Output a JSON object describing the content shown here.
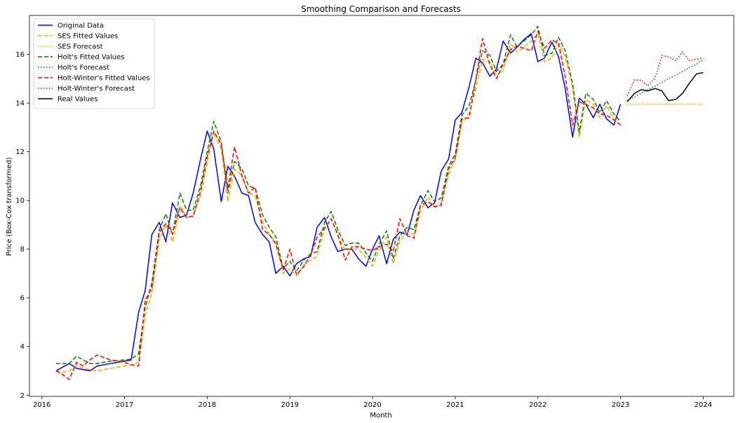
{
  "chart_data": {
    "type": "line",
    "title": "Smoothing Comparison and Forecasts",
    "xlabel": "Month",
    "ylabel": "Price (Box-Cox transformed)",
    "xlim": [
      2015.85,
      2024.37
    ],
    "ylim": [
      1.95,
      17.6
    ],
    "x_ticks": [
      2016,
      2017,
      2018,
      2019,
      2020,
      2021,
      2022,
      2023,
      2024
    ],
    "y_ticks": [
      2,
      4,
      6,
      8,
      10,
      12,
      14,
      16
    ],
    "legend_position": "upper-left",
    "grid": false,
    "series": [
      {
        "name": "Original Data",
        "color": "#0000ff",
        "style": "solid",
        "x": [
          2016.17,
          2016.25,
          2016.33,
          2016.42,
          2016.5,
          2016.58,
          2016.67,
          2016.75,
          2016.83,
          2016.92,
          2017.0,
          2017.08,
          2017.17,
          2017.25,
          2017.33,
          2017.42,
          2017.5,
          2017.58,
          2017.67,
          2017.75,
          2017.83,
          2017.92,
          2018.0,
          2018.08,
          2018.17,
          2018.25,
          2018.33,
          2018.42,
          2018.5,
          2018.58,
          2018.67,
          2018.75,
          2018.83,
          2018.92,
          2019.0,
          2019.08,
          2019.17,
          2019.25,
          2019.33,
          2019.42,
          2019.5,
          2019.58,
          2019.67,
          2019.75,
          2019.83,
          2019.92,
          2020.0,
          2020.08,
          2020.17,
          2020.25,
          2020.33,
          2020.42,
          2020.5,
          2020.58,
          2020.67,
          2020.75,
          2020.83,
          2020.92,
          2021.0,
          2021.08,
          2021.17,
          2021.25,
          2021.33,
          2021.42,
          2021.5,
          2021.58,
          2021.67,
          2021.75,
          2021.83,
          2021.92,
          2022.0,
          2022.08,
          2022.17,
          2022.25,
          2022.33,
          2022.42,
          2022.5,
          2022.58,
          2022.67,
          2022.75,
          2022.83,
          2022.92,
          2023.0
        ],
        "y": [
          3.0,
          3.15,
          3.3,
          3.1,
          3.05,
          3.0,
          3.2,
          3.25,
          3.3,
          3.35,
          3.4,
          3.45,
          5.4,
          6.3,
          8.6,
          9.1,
          8.3,
          9.9,
          9.3,
          9.4,
          10.3,
          11.7,
          12.85,
          12.1,
          9.95,
          11.4,
          11.0,
          10.3,
          10.2,
          9.1,
          8.6,
          8.3,
          7.0,
          7.3,
          6.9,
          7.4,
          7.6,
          7.7,
          8.9,
          9.3,
          8.5,
          7.9,
          8.0,
          8.0,
          7.6,
          7.3,
          8.0,
          8.55,
          7.4,
          8.4,
          8.7,
          8.6,
          9.6,
          10.2,
          9.7,
          9.9,
          11.2,
          11.7,
          13.3,
          13.6,
          14.7,
          15.85,
          15.65,
          15.1,
          15.4,
          16.55,
          16.05,
          16.3,
          16.6,
          16.85,
          15.7,
          15.85,
          16.5,
          15.9,
          14.6,
          12.6,
          14.2,
          13.95,
          13.4,
          13.95,
          13.35,
          13.1,
          13.95
        ]
      },
      {
        "name": "SES Fitted Values",
        "color": "#ffa500",
        "style": "dashed",
        "x": [
          2016.17,
          2016.25,
          2016.33,
          2016.42,
          2016.5,
          2016.58,
          2016.67,
          2016.75,
          2016.83,
          2016.92,
          2017.0,
          2017.08,
          2017.17,
          2017.25,
          2017.33,
          2017.42,
          2017.5,
          2017.58,
          2017.67,
          2017.75,
          2017.83,
          2017.92,
          2018.0,
          2018.08,
          2018.17,
          2018.25,
          2018.33,
          2018.42,
          2018.5,
          2018.58,
          2018.67,
          2018.75,
          2018.83,
          2018.92,
          2019.0,
          2019.08,
          2019.17,
          2019.25,
          2019.33,
          2019.42,
          2019.5,
          2019.58,
          2019.67,
          2019.75,
          2019.83,
          2019.92,
          2020.0,
          2020.08,
          2020.17,
          2020.25,
          2020.33,
          2020.42,
          2020.5,
          2020.58,
          2020.67,
          2020.75,
          2020.83,
          2020.92,
          2021.0,
          2021.08,
          2021.17,
          2021.25,
          2021.33,
          2021.42,
          2021.5,
          2021.58,
          2021.67,
          2021.75,
          2021.83,
          2021.92,
          2022.0,
          2022.08,
          2022.17,
          2022.25,
          2022.33,
          2022.42,
          2022.5,
          2022.58,
          2022.67,
          2022.75,
          2022.83,
          2022.92,
          2023.0
        ],
        "y": [
          3.0,
          2.95,
          3.0,
          3.2,
          3.1,
          3.05,
          3.0,
          3.05,
          3.1,
          3.15,
          3.2,
          3.25,
          3.35,
          5.3,
          6.2,
          8.4,
          9.0,
          8.3,
          9.8,
          9.3,
          9.4,
          10.2,
          11.6,
          12.8,
          12.1,
          9.95,
          11.3,
          11.0,
          10.3,
          10.2,
          9.1,
          8.6,
          8.3,
          7.0,
          7.2,
          6.9,
          7.35,
          7.55,
          7.7,
          8.85,
          9.25,
          8.55,
          7.95,
          8.0,
          8.0,
          7.65,
          7.3,
          7.95,
          8.5,
          7.4,
          8.35,
          8.7,
          8.6,
          9.55,
          10.15,
          9.7,
          9.9,
          11.1,
          11.7,
          13.2,
          13.6,
          14.6,
          15.8,
          15.7,
          15.1,
          15.35,
          16.45,
          16.1,
          16.3,
          16.55,
          16.85,
          15.7,
          15.85,
          16.45,
          15.9,
          14.6,
          12.6,
          14.15,
          13.95,
          13.4,
          13.9,
          13.35,
          13.1
        ]
      },
      {
        "name": "SES Forecast",
        "color": "#ffa500",
        "style": "dotted",
        "x": [
          2023.08,
          2023.17,
          2023.25,
          2023.33,
          2023.42,
          2023.5,
          2023.58,
          2023.67,
          2023.75,
          2023.83,
          2023.92,
          2024.0
        ],
        "y": [
          13.95,
          13.95,
          13.95,
          13.95,
          13.95,
          13.95,
          13.95,
          13.95,
          13.95,
          13.95,
          13.95,
          13.95
        ]
      },
      {
        "name": "Holt's Fitted Values",
        "color": "#008000",
        "style": "dashed",
        "x": [
          2016.17,
          2016.25,
          2016.33,
          2016.42,
          2016.5,
          2016.58,
          2016.67,
          2016.75,
          2016.83,
          2016.92,
          2017.0,
          2017.08,
          2017.17,
          2017.25,
          2017.33,
          2017.42,
          2017.5,
          2017.58,
          2017.67,
          2017.75,
          2017.83,
          2017.92,
          2018.0,
          2018.08,
          2018.17,
          2018.25,
          2018.33,
          2018.42,
          2018.5,
          2018.58,
          2018.67,
          2018.75,
          2018.83,
          2018.92,
          2019.0,
          2019.08,
          2019.17,
          2019.25,
          2019.33,
          2019.42,
          2019.5,
          2019.58,
          2019.67,
          2019.75,
          2019.83,
          2019.92,
          2020.0,
          2020.08,
          2020.17,
          2020.25,
          2020.33,
          2020.42,
          2020.5,
          2020.58,
          2020.67,
          2020.75,
          2020.83,
          2020.92,
          2021.0,
          2021.08,
          2021.17,
          2021.25,
          2021.33,
          2021.42,
          2021.5,
          2021.58,
          2021.67,
          2021.75,
          2021.83,
          2021.92,
          2022.0,
          2022.08,
          2022.17,
          2022.25,
          2022.33,
          2022.42,
          2022.5,
          2022.58,
          2022.67,
          2022.75,
          2022.83,
          2022.92,
          2023.0
        ],
        "y": [
          3.3,
          3.3,
          3.3,
          3.6,
          3.45,
          3.3,
          3.3,
          3.35,
          3.4,
          3.42,
          3.45,
          3.48,
          3.7,
          5.6,
          6.6,
          8.8,
          9.45,
          8.6,
          10.3,
          9.6,
          9.6,
          10.6,
          12.0,
          13.25,
          12.4,
          10.3,
          11.6,
          11.3,
          10.6,
          10.5,
          9.4,
          8.9,
          8.5,
          7.2,
          7.5,
          7.1,
          7.55,
          7.8,
          7.9,
          9.1,
          9.55,
          8.8,
          8.15,
          8.25,
          8.25,
          7.85,
          7.5,
          8.2,
          8.75,
          7.6,
          8.55,
          8.9,
          8.8,
          9.8,
          10.4,
          9.95,
          10.1,
          11.4,
          11.9,
          13.5,
          13.9,
          14.95,
          16.15,
          15.95,
          15.3,
          15.6,
          16.8,
          16.3,
          16.55,
          16.8,
          17.15,
          15.95,
          16.05,
          16.7,
          16.15,
          14.8,
          12.8,
          14.4,
          14.15,
          13.6,
          14.1,
          13.55,
          13.25
        ]
      },
      {
        "name": "Holt's Forecast",
        "color": "#008000",
        "style": "dotted",
        "x": [
          2023.08,
          2023.17,
          2023.25,
          2023.33,
          2023.42,
          2023.5,
          2023.58,
          2023.67,
          2023.75,
          2023.83,
          2023.92,
          2024.0
        ],
        "y": [
          14.1,
          14.25,
          14.4,
          14.55,
          14.7,
          14.85,
          15.0,
          15.15,
          15.3,
          15.45,
          15.6,
          15.8
        ]
      },
      {
        "name": "Holt-Winter's Fitted Values",
        "color": "#ff0000",
        "style": "dashed",
        "x": [
          2016.17,
          2016.25,
          2016.33,
          2016.42,
          2016.5,
          2016.58,
          2016.67,
          2016.75,
          2016.83,
          2016.92,
          2017.0,
          2017.08,
          2017.17,
          2017.25,
          2017.33,
          2017.42,
          2017.5,
          2017.58,
          2017.67,
          2017.75,
          2017.83,
          2017.92,
          2018.0,
          2018.08,
          2018.17,
          2018.25,
          2018.33,
          2018.42,
          2018.5,
          2018.58,
          2018.67,
          2018.75,
          2018.83,
          2018.92,
          2019.0,
          2019.08,
          2019.17,
          2019.25,
          2019.33,
          2019.42,
          2019.5,
          2019.58,
          2019.67,
          2019.75,
          2019.83,
          2019.92,
          2020.0,
          2020.08,
          2020.17,
          2020.25,
          2020.33,
          2020.42,
          2020.5,
          2020.58,
          2020.67,
          2020.75,
          2020.83,
          2020.92,
          2021.0,
          2021.08,
          2021.17,
          2021.25,
          2021.33,
          2021.42,
          2021.5,
          2021.58,
          2021.67,
          2021.75,
          2021.83,
          2021.92,
          2022.0,
          2022.08,
          2022.17,
          2022.25,
          2022.33,
          2022.42,
          2022.5,
          2022.58,
          2022.67,
          2022.75,
          2022.83,
          2022.92,
          2023.0
        ],
        "y": [
          3.0,
          2.85,
          2.65,
          3.35,
          3.2,
          3.45,
          3.65,
          3.55,
          3.45,
          3.4,
          3.35,
          3.25,
          3.2,
          5.9,
          6.4,
          8.7,
          9.05,
          8.65,
          9.7,
          9.3,
          9.35,
          10.4,
          11.8,
          12.85,
          12.3,
          10.5,
          12.2,
          11.0,
          10.3,
          10.55,
          8.8,
          8.6,
          8.2,
          7.15,
          8.0,
          6.95,
          7.3,
          7.75,
          8.5,
          8.85,
          9.25,
          8.6,
          7.55,
          8.1,
          8.1,
          8.0,
          7.95,
          8.1,
          8.2,
          7.9,
          9.25,
          8.55,
          8.45,
          9.8,
          9.95,
          9.75,
          9.8,
          11.3,
          11.75,
          13.35,
          13.4,
          15.0,
          16.65,
          15.55,
          15.0,
          15.6,
          16.2,
          16.35,
          16.25,
          16.15,
          16.95,
          16.25,
          16.6,
          16.45,
          15.1,
          13.1,
          14.05,
          13.95,
          13.8,
          13.55,
          13.5,
          13.3,
          13.1
        ]
      },
      {
        "name": "Holt-Winter's Forecast",
        "color": "#ff0000",
        "style": "dotted",
        "x": [
          2023.08,
          2023.17,
          2023.25,
          2023.33,
          2023.42,
          2023.5,
          2023.58,
          2023.67,
          2023.75,
          2023.83,
          2023.92,
          2024.0
        ],
        "y": [
          14.3,
          14.95,
          14.95,
          14.7,
          15.05,
          15.95,
          15.9,
          15.75,
          16.1,
          15.75,
          15.8,
          15.85
        ]
      },
      {
        "name": "Real Values",
        "color": "#000000",
        "style": "solid",
        "x": [
          2023.08,
          2023.17,
          2023.25,
          2023.33,
          2023.42,
          2023.5,
          2023.58,
          2023.67,
          2023.75,
          2023.83,
          2023.92,
          2024.0
        ],
        "y": [
          14.05,
          14.4,
          14.55,
          14.5,
          14.6,
          14.5,
          14.1,
          14.15,
          14.4,
          14.8,
          15.2,
          15.25
        ]
      }
    ]
  }
}
